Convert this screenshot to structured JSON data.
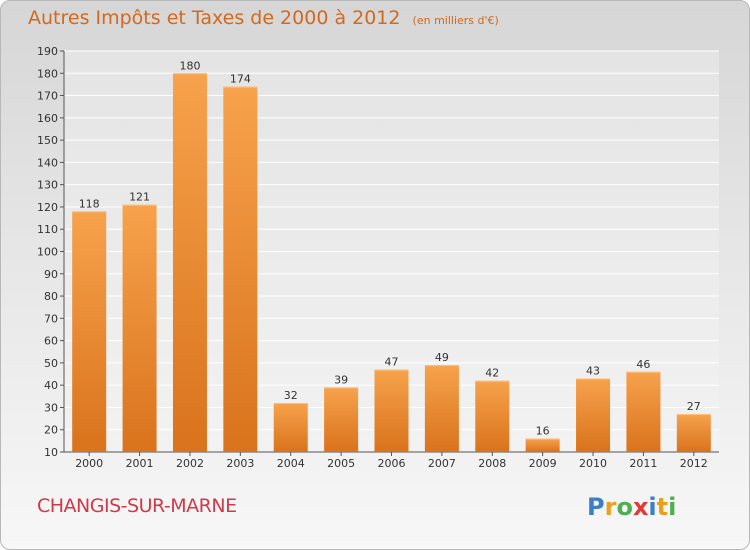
{
  "header": {
    "title": "Autres Impôts et Taxes de 2000 à 2012",
    "subtitle": "(en milliers d'€)"
  },
  "footer": {
    "town": "CHANGIS-SUR-MARNE",
    "brand": "Proxiti"
  },
  "colors": {
    "bar_light": "#f7a24c",
    "bar_dark": "#d9731c",
    "title": "#d2691e",
    "town": "#cf3a4a"
  },
  "chart_data": {
    "type": "bar",
    "title": "Autres Impôts et Taxes de 2000 à 2012",
    "subtitle": "(en milliers d'€)",
    "categories": [
      "2000",
      "2001",
      "2002",
      "2003",
      "2004",
      "2005",
      "2006",
      "2007",
      "2008",
      "2009",
      "2010",
      "2011",
      "2012"
    ],
    "values": [
      118,
      121,
      180,
      174,
      32,
      39,
      47,
      49,
      42,
      16,
      43,
      46,
      27
    ],
    "ylim": [
      10,
      190
    ],
    "yticks": [
      10,
      20,
      30,
      40,
      50,
      60,
      70,
      80,
      90,
      100,
      110,
      120,
      130,
      140,
      150,
      160,
      170,
      180,
      190
    ],
    "grid": true,
    "data_labels": true
  }
}
